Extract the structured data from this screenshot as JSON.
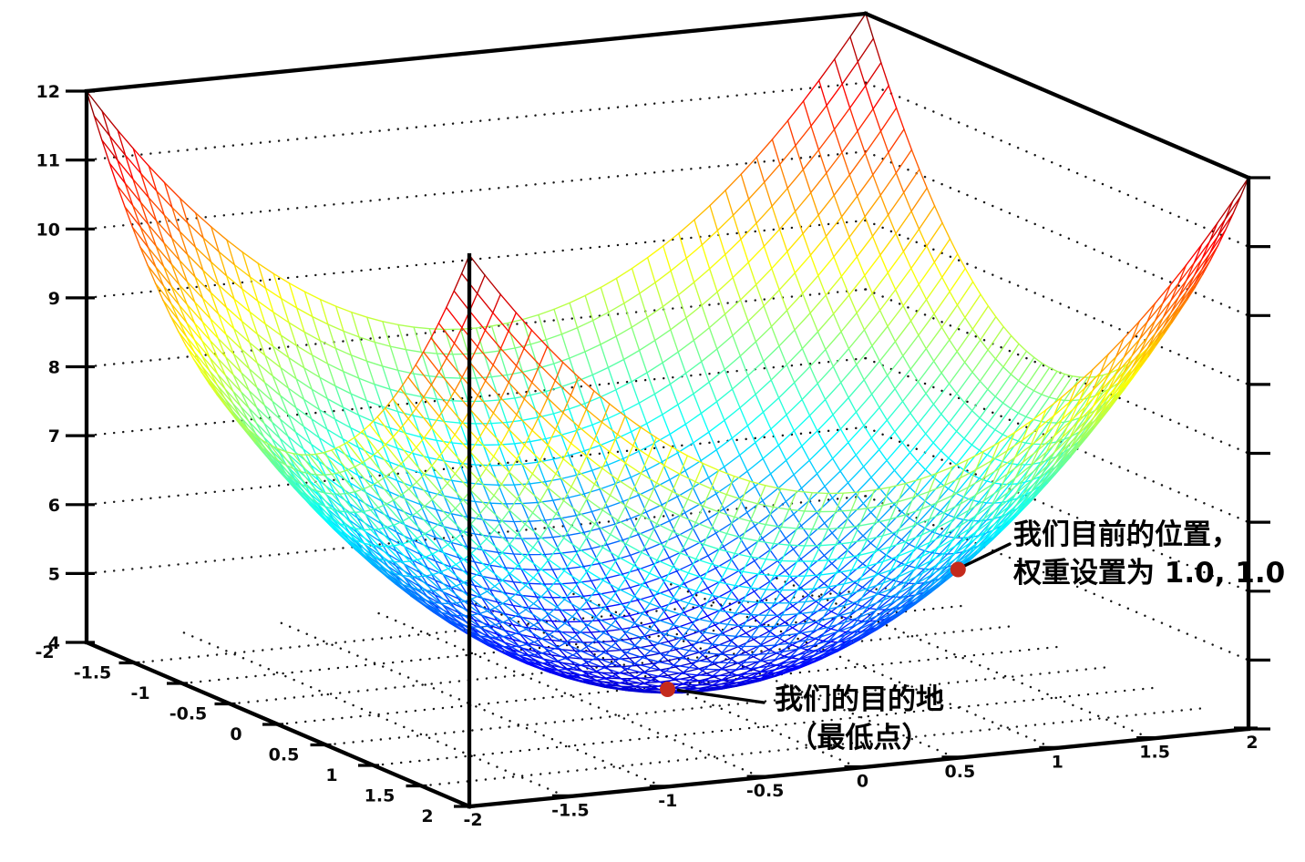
{
  "chart_data": {
    "type": "surface",
    "surface": {
      "function": "z = x^2 + y^2 + 4",
      "x_range": [
        -2,
        2
      ],
      "y_range": [
        -2,
        2
      ],
      "z_range": [
        4,
        12
      ],
      "grid_divisions": 50,
      "colormap": "jet"
    },
    "axes": {
      "x": {
        "tick_values": [
          -2,
          -1.5,
          -1,
          -0.5,
          0,
          0.5,
          1,
          1.5,
          2
        ],
        "tick_labels": [
          "-2",
          "-1.5",
          "-1",
          "-0.5",
          "0",
          "0.5",
          "1",
          "1.5",
          "2"
        ]
      },
      "y": {
        "tick_values": [
          -2,
          -1.5,
          -1,
          -0.5,
          0,
          0.5,
          1,
          1.5,
          2
        ],
        "tick_labels": [
          "-2",
          "-1.5",
          "-1",
          "-0.5",
          "0",
          "0.5",
          "1",
          "1.5",
          "2"
        ]
      },
      "z": {
        "tick_values": [
          4,
          5,
          6,
          7,
          8,
          9,
          10,
          11,
          12
        ],
        "tick_labels": [
          "4",
          "5",
          "6",
          "7",
          "8",
          "9",
          "10",
          "11",
          "12"
        ]
      }
    },
    "floor_grid_ticks": [
      -1.5,
      -1,
      -0.5,
      0,
      0.5,
      1,
      1.5
    ],
    "wall_grid_z": [
      5,
      6,
      7,
      8,
      9,
      10,
      11
    ],
    "grid_style": "dotted",
    "points": [
      {
        "x": 0,
        "y": 0,
        "z": 4,
        "label": "我们的目的地（最低点）"
      },
      {
        "x": 1,
        "y": 1,
        "z": 6,
        "label": "我们目前的位置，权重设置为 1.0, 1.0"
      }
    ]
  },
  "annotations": {
    "destination": {
      "line1": "我们的目的地",
      "line2": "（最低点）"
    },
    "current": {
      "line1": "我们目前的位置，",
      "line2": "权重设置为 1.0, 1.0"
    }
  },
  "colors": {
    "background": "#ffffff",
    "axis": "#000000",
    "grid_dots": "#151515",
    "point": "#c42a1c",
    "annotation_text": "#000000"
  }
}
